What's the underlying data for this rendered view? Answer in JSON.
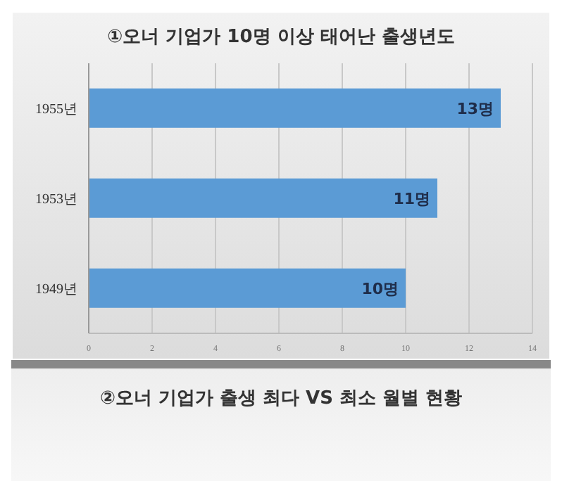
{
  "chart_data": [
    {
      "type": "bar",
      "orientation": "horizontal",
      "title": "①오너 기업가 10명 이상 태어난 출생년도",
      "categories": [
        "1955년",
        "1953년",
        "1949년"
      ],
      "values": [
        13,
        11,
        10
      ],
      "value_labels": [
        "13명",
        "11명",
        "10명"
      ],
      "color": "#5b9bd5",
      "xlim": [
        0,
        14
      ],
      "xticks": [
        0,
        2,
        4,
        6,
        8,
        10,
        12,
        14
      ],
      "grid": "x"
    },
    {
      "type": "other",
      "title": "②오너 기업가 출생 최다 VS 최소 월별 현황"
    }
  ]
}
